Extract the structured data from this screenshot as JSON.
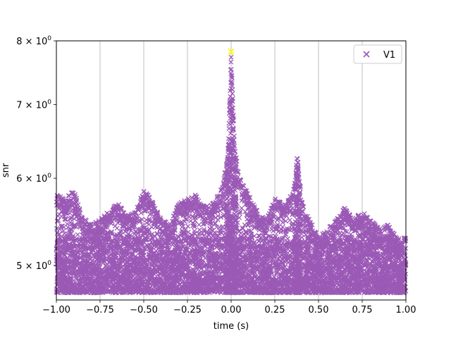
{
  "chart_data": {
    "type": "scatter",
    "xlabel": "time (s)",
    "ylabel": "snr",
    "xlim": [
      -1.0,
      1.0
    ],
    "ylim": [
      4.65,
      8.0
    ],
    "yscale": "log",
    "grid": "vertical-only",
    "legend_placement": "top-right",
    "x_ticks": [
      {
        "value": -1.0,
        "label": "−1.00"
      },
      {
        "value": -0.75,
        "label": "−0.75"
      },
      {
        "value": -0.5,
        "label": "−0.50"
      },
      {
        "value": -0.25,
        "label": "−0.25"
      },
      {
        "value": 0.0,
        "label": "0.00"
      },
      {
        "value": 0.25,
        "label": "0.25"
      },
      {
        "value": 0.5,
        "label": "0.50"
      },
      {
        "value": 0.75,
        "label": "0.75"
      },
      {
        "value": 1.0,
        "label": "1.00"
      }
    ],
    "y_ticks": [
      {
        "value": 5,
        "base": "5",
        "exp": "0"
      },
      {
        "value": 6,
        "base": "6",
        "exp": "0"
      },
      {
        "value": 7,
        "base": "7",
        "exp": "0"
      },
      {
        "value": 8,
        "base": "8",
        "exp": "0"
      }
    ],
    "series": [
      {
        "name": "V1",
        "color": "#9b59b6",
        "marker": "x",
        "envelope_x": [
          -1.0,
          -0.95,
          -0.9,
          -0.85,
          -0.8,
          -0.75,
          -0.7,
          -0.65,
          -0.6,
          -0.55,
          -0.5,
          -0.45,
          -0.4,
          -0.35,
          -0.3,
          -0.25,
          -0.2,
          -0.15,
          -0.1,
          -0.05,
          -0.02,
          -0.01,
          0.0,
          0.01,
          0.02,
          0.05,
          0.1,
          0.15,
          0.2,
          0.25,
          0.3,
          0.35,
          0.37,
          0.38,
          0.39,
          0.42,
          0.45,
          0.5,
          0.55,
          0.6,
          0.65,
          0.7,
          0.75,
          0.8,
          0.85,
          0.9,
          0.95,
          1.0
        ],
        "envelope_y": [
          5.8,
          5.75,
          5.85,
          5.55,
          5.45,
          5.5,
          5.6,
          5.7,
          5.55,
          5.6,
          5.85,
          5.75,
          5.5,
          5.45,
          5.7,
          5.75,
          5.8,
          5.65,
          5.7,
          5.9,
          6.3,
          7.0,
          7.8,
          7.1,
          6.4,
          6.0,
          5.8,
          5.6,
          5.5,
          5.75,
          5.7,
          5.8,
          6.1,
          6.35,
          6.0,
          5.6,
          5.5,
          5.3,
          5.4,
          5.5,
          5.65,
          5.5,
          5.6,
          5.5,
          5.4,
          5.45,
          5.3,
          5.1
        ],
        "floor": 4.72
      },
      {
        "name": "",
        "color": "#ffff00",
        "marker": "x",
        "points": [
          {
            "x": 0.0,
            "y": 7.82
          }
        ]
      }
    ]
  }
}
